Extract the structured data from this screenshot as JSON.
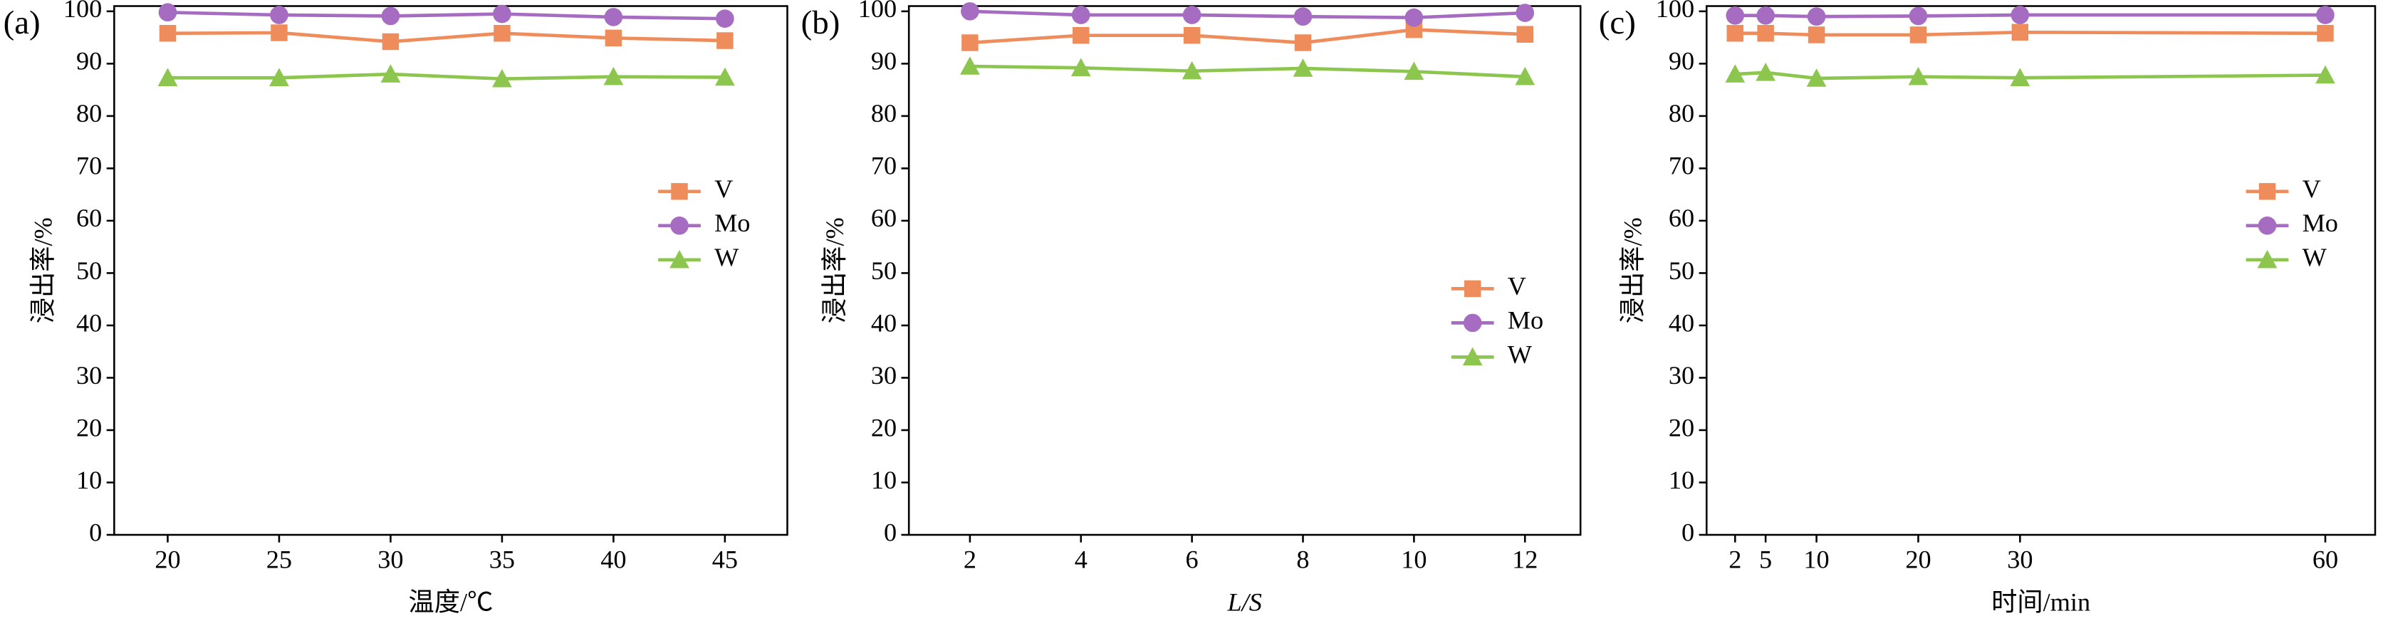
{
  "chart_data": [
    {
      "type": "line",
      "label": "(a)",
      "xlabel": "温度/℃",
      "ylabel": "浸出率/%",
      "x": [
        20,
        25,
        30,
        35,
        40,
        45
      ],
      "xlim": [
        17.6,
        47.8
      ],
      "xticks": [
        20,
        25,
        30,
        35,
        40,
        45
      ],
      "ylim": [
        0,
        101
      ],
      "yticks": [
        0,
        10,
        20,
        30,
        40,
        50,
        60,
        70,
        80,
        90,
        100
      ],
      "legend": "center right",
      "grid": false,
      "series": [
        {
          "name": "V",
          "color": "#ee8c5c",
          "marker": "square",
          "values": [
            95.8,
            95.9,
            94.2,
            95.8,
            94.9,
            94.4
          ]
        },
        {
          "name": "Mo",
          "color": "#a56cc1",
          "marker": "circle",
          "values": [
            99.8,
            99.3,
            99.1,
            99.5,
            98.9,
            98.6
          ]
        },
        {
          "name": "W",
          "color": "#8dc64f",
          "marker": "triangle",
          "values": [
            87.3,
            87.3,
            88.0,
            87.1,
            87.5,
            87.4
          ]
        }
      ]
    },
    {
      "type": "line",
      "label": "(b)",
      "xlabel": "L/S",
      "ylabel": "浸出率/%",
      "x": [
        2,
        4,
        6,
        8,
        10,
        12
      ],
      "xlim": [
        0.9,
        13.0
      ],
      "xticks": [
        2,
        4,
        6,
        8,
        10,
        12
      ],
      "ylim": [
        0,
        101
      ],
      "yticks": [
        0,
        10,
        20,
        30,
        40,
        50,
        60,
        70,
        80,
        90,
        100
      ],
      "legend": "lower right",
      "grid": false,
      "series": [
        {
          "name": "V",
          "color": "#ee8c5c",
          "marker": "square",
          "values": [
            94.0,
            95.4,
            95.4,
            94.0,
            96.5,
            95.6
          ]
        },
        {
          "name": "Mo",
          "color": "#a56cc1",
          "marker": "circle",
          "values": [
            100.0,
            99.3,
            99.3,
            99.0,
            98.8,
            99.7
          ]
        },
        {
          "name": "W",
          "color": "#8dc64f",
          "marker": "triangle",
          "values": [
            89.5,
            89.2,
            88.6,
            89.1,
            88.5,
            87.5
          ]
        }
      ]
    },
    {
      "type": "line",
      "label": "(c)",
      "xlabel": "时间/min",
      "ylabel": "浸出率/%",
      "x": [
        2,
        5,
        10,
        20,
        30,
        60
      ],
      "xlim": [
        -0.8,
        64.9
      ],
      "xticks": [
        2,
        5,
        10,
        20,
        30,
        60
      ],
      "ylim": [
        0,
        101
      ],
      "yticks": [
        0,
        10,
        20,
        30,
        40,
        50,
        60,
        70,
        80,
        90,
        100
      ],
      "legend": "center right",
      "grid": false,
      "series": [
        {
          "name": "V",
          "color": "#ee8c5c",
          "marker": "square",
          "values": [
            95.8,
            95.8,
            95.5,
            95.5,
            96.0,
            95.8
          ]
        },
        {
          "name": "Mo",
          "color": "#a56cc1",
          "marker": "circle",
          "values": [
            99.2,
            99.2,
            99.0,
            99.1,
            99.3,
            99.3
          ]
        },
        {
          "name": "W",
          "color": "#8dc64f",
          "marker": "triangle",
          "values": [
            88.0,
            88.3,
            87.2,
            87.5,
            87.3,
            87.8
          ]
        }
      ]
    }
  ]
}
